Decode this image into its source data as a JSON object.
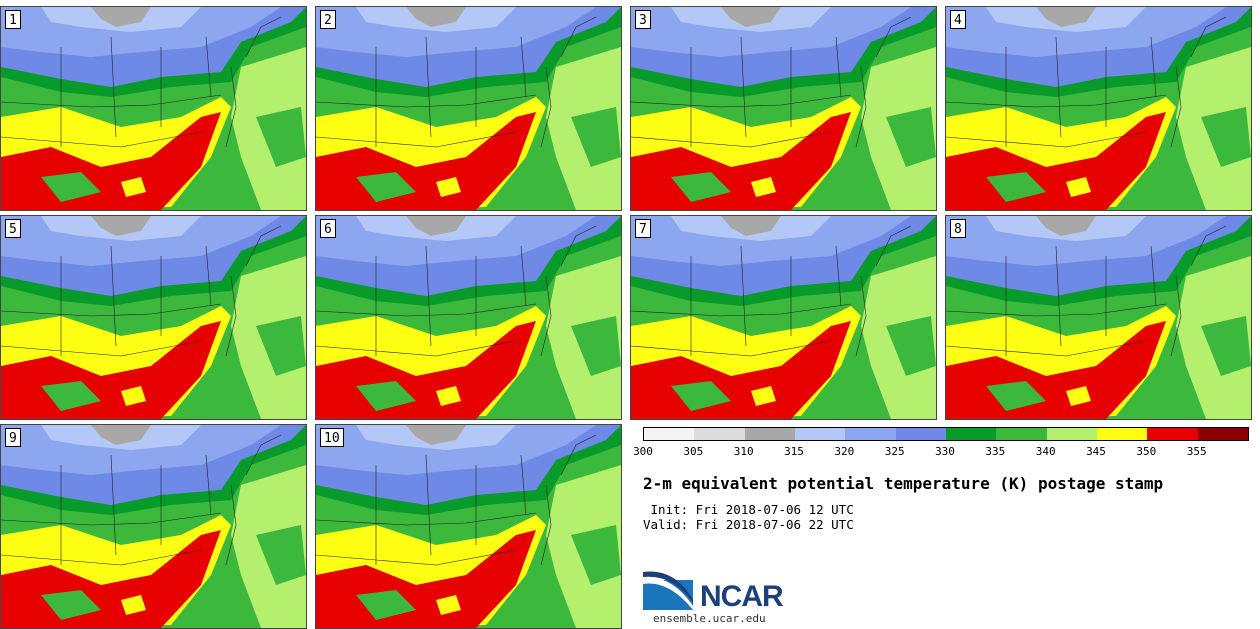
{
  "panels": [
    {
      "label": "1"
    },
    {
      "label": "2"
    },
    {
      "label": "3"
    },
    {
      "label": "4"
    },
    {
      "label": "5"
    },
    {
      "label": "6"
    },
    {
      "label": "7"
    },
    {
      "label": "8"
    },
    {
      "label": "9"
    },
    {
      "label": "10"
    }
  ],
  "colorbar": {
    "colors": [
      "#f4f4f4",
      "#dcdcdc",
      "#a8a8a8",
      "#b4c8f8",
      "#8ca6f0",
      "#6e8ae6",
      "#089b2a",
      "#3cb83c",
      "#b4f06e",
      "#ffff14",
      "#e60000",
      "#8c0000"
    ],
    "tick_labels": [
      "300",
      "305",
      "310",
      "315",
      "320",
      "325",
      "330",
      "335",
      "340",
      "345",
      "350",
      "355"
    ]
  },
  "title": "2-m equivalent potential temperature (K) postage stamp",
  "init": " Init: Fri 2018-07-06 12 UTC",
  "valid": "Valid: Fri 2018-07-06 22 UTC",
  "logo": {
    "text": "NCAR",
    "url": "ensemble.ucar.edu"
  }
}
